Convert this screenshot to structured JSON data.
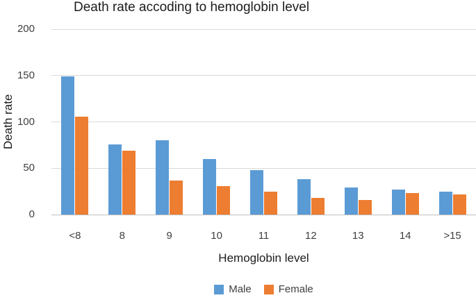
{
  "chart_data": {
    "type": "bar",
    "title": "Death rate accoding to hemoglobin level",
    "xlabel": "Hemoglobin level",
    "ylabel": "Death rate",
    "categories": [
      "<8",
      "8",
      "9",
      "10",
      "11",
      "12",
      "13",
      "14",
      ">15"
    ],
    "series": [
      {
        "name": "Male",
        "color": "#5B9BD5",
        "values": [
          149,
          76,
          80,
          60,
          48,
          38,
          29,
          27,
          25
        ]
      },
      {
        "name": "Female",
        "color": "#ED7D31",
        "values": [
          106,
          69,
          37,
          31,
          25,
          18,
          16,
          23,
          22
        ]
      }
    ],
    "ylim": [
      0,
      200
    ],
    "yticks": [
      0,
      50,
      100,
      150,
      200
    ],
    "grid": true,
    "legend_position": "bottom",
    "colors": {
      "gridline": "#D9D9D9",
      "axis_line": "#BFBFBF",
      "tick_text": "#404040",
      "title_text": "#1C1C1C",
      "background": "#FFFFFF"
    }
  }
}
